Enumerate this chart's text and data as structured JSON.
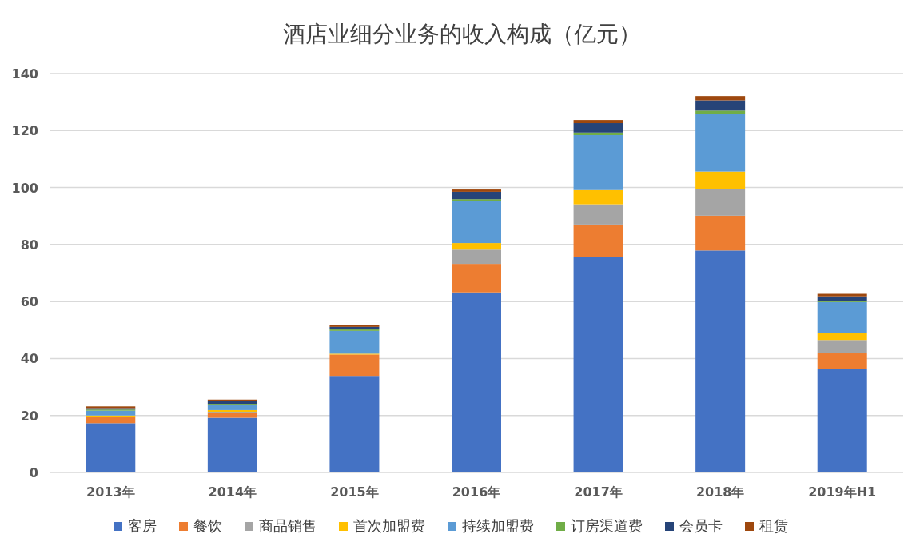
{
  "chart_data": {
    "type": "bar",
    "title": "酒店业细分业务的收入构成（亿元）",
    "stacked": true,
    "categories": [
      "2013年",
      "2014年",
      "2015年",
      "2016年",
      "2017年",
      "2018年",
      "2019年H1"
    ],
    "series": [
      {
        "name": "客房",
        "color": "#4472c4",
        "values": [
          17.3,
          19.2,
          33.9,
          63.2,
          75.6,
          77.9,
          36.2
        ]
      },
      {
        "name": "餐饮",
        "color": "#ed7d31",
        "values": [
          2.3,
          1.6,
          7.5,
          10.0,
          11.4,
          12.2,
          5.6
        ]
      },
      {
        "name": "商品销售",
        "color": "#a5a5a5",
        "values": [
          null,
          0.5,
          null,
          5.0,
          7.1,
          9.3,
          4.7
        ]
      },
      {
        "name": "首次加盟费",
        "color": "#ffc000",
        "values": [
          0.4,
          0.6,
          0.3,
          2.3,
          5.0,
          6.2,
          2.6
        ]
      },
      {
        "name": "持续加盟费",
        "color": "#5b9bd5",
        "values": [
          1.7,
          1.9,
          8.0,
          14.8,
          19.3,
          20.3,
          10.7
        ]
      },
      {
        "name": "订房渠道费",
        "color": "#70ad47",
        "values": [
          0.4,
          0.3,
          0.5,
          0.6,
          0.9,
          1.1,
          0.5
        ]
      },
      {
        "name": "会员卡",
        "color": "#264478",
        "values": [
          0.5,
          1.0,
          0.9,
          2.6,
          3.3,
          3.6,
          1.5
        ]
      },
      {
        "name": "租赁",
        "color": "#9e480e",
        "values": [
          0.6,
          0.5,
          0.8,
          0.8,
          1.1,
          1.5,
          0.9
        ]
      }
    ],
    "ylim": [
      0,
      140
    ],
    "yticks": [
      0,
      20,
      40,
      60,
      80,
      100,
      120,
      140
    ],
    "grid": "y",
    "legend": "bottom"
  }
}
